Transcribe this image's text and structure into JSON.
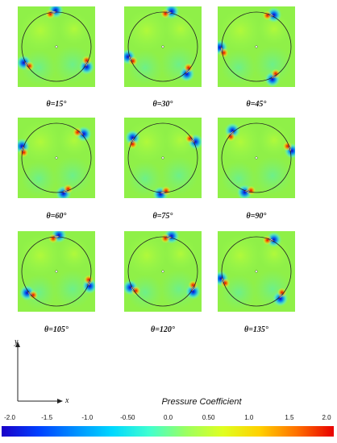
{
  "panels": [
    {
      "caption": "θ=15°",
      "blades": [
        95,
        210,
        330
      ]
    },
    {
      "caption": "θ=30°",
      "blades": [
        80,
        200,
        315
      ]
    },
    {
      "caption": "θ=45°",
      "blades": [
        65,
        185,
        300
      ]
    },
    {
      "caption": "θ=60°",
      "blades": [
        45,
        165,
        285
      ]
    },
    {
      "caption": "θ=75°",
      "blades": [
        30,
        150,
        270
      ]
    },
    {
      "caption": "θ=90°",
      "blades": [
        15,
        135,
        255
      ]
    },
    {
      "caption": "θ=105°",
      "blades": [
        90,
        220,
        340
      ]
    },
    {
      "caption": "θ=120°",
      "blades": [
        80,
        210,
        330
      ]
    },
    {
      "caption": "θ=135°",
      "blades": [
        65,
        195,
        315
      ]
    }
  ],
  "axes": {
    "x_label": "x",
    "y_label": "y"
  },
  "colorbar": {
    "title": "Pressure Coefficient",
    "ticks": [
      "-2.0",
      "-1.5",
      "-1.0",
      "-0.50",
      "0.0",
      "0.50",
      "1.0",
      "1.5",
      "2.0"
    ],
    "colors": [
      "#1a00c8",
      "#0040ff",
      "#0090ff",
      "#00d8ff",
      "#40ffd0",
      "#9cff60",
      "#e0ff20",
      "#ffd000",
      "#ff7000",
      "#e80000"
    ]
  },
  "colors": {
    "field": "#8ff048",
    "circle": "#222222"
  }
}
